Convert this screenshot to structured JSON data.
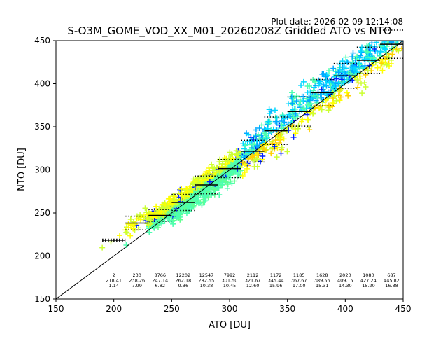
{
  "chart_data": {
    "type": "scatter",
    "title": "S-O3M_GOME_VOD_XX_M01_20260208Z Gridded ATO vs NTO",
    "plot_date": "Plot date: 2026-02-09 12:14:08",
    "xlabel": "ATO [DU]",
    "ylabel": "NTO [DU]",
    "xlim": [
      150,
      450
    ],
    "ylim": [
      150,
      450
    ],
    "xticks": [
      "150",
      "200",
      "250",
      "300",
      "350",
      "400",
      "450"
    ],
    "yticks": [
      "150",
      "200",
      "250",
      "300",
      "350",
      "400",
      "450"
    ],
    "bin_width": 20,
    "bins": [
      {
        "x_center": 200,
        "count": "2",
        "mean": "218.41",
        "std": "1.14"
      },
      {
        "x_center": 220,
        "count": "230",
        "mean": "238.26",
        "std": "7.99"
      },
      {
        "x_center": 240,
        "count": "8766",
        "mean": "247.14",
        "std": "6.82"
      },
      {
        "x_center": 260,
        "count": "12202",
        "mean": "262.18",
        "std": "9.36"
      },
      {
        "x_center": 280,
        "count": "12547",
        "mean": "282.55",
        "std": "10.38"
      },
      {
        "x_center": 300,
        "count": "7992",
        "mean": "301.50",
        "std": "10.45"
      },
      {
        "x_center": 320,
        "count": "2112",
        "mean": "321.67",
        "std": "12.60"
      },
      {
        "x_center": 340,
        "count": "1172",
        "mean": "345.44",
        "std": "15.96"
      },
      {
        "x_center": 360,
        "count": "1185",
        "mean": "367.67",
        "std": "17.00"
      },
      {
        "x_center": 380,
        "count": "1628",
        "mean": "389.56",
        "std": "15.31"
      },
      {
        "x_center": 400,
        "count": "2020",
        "mean": "409.15",
        "std": "14.30"
      },
      {
        "x_center": 420,
        "count": "1080",
        "mean": "427.24",
        "std": "15.20"
      },
      {
        "x_center": 440,
        "count": "687",
        "mean": "445.82",
        "std": "16.38"
      }
    ],
    "reference_line": "y = x",
    "marker_colors": [
      "#0022ff",
      "#00aaff",
      "#00d8ff",
      "#4dffb0",
      "#60ff90",
      "#ccff33",
      "#ffff00",
      "#ffd000"
    ]
  }
}
